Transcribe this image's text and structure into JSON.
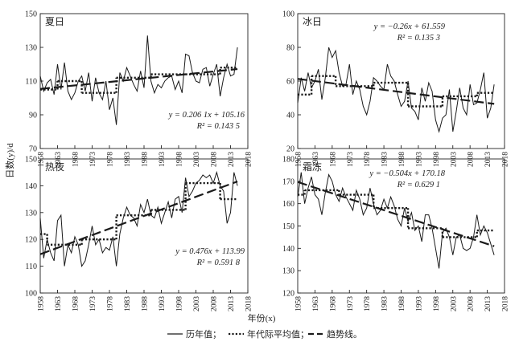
{
  "figure": {
    "ylabel": "日数(y)/d",
    "xlabel": "年份(x)",
    "legend": [
      {
        "style": "solid",
        "label": "历年值；"
      },
      {
        "style": "dotted",
        "label": "年代际平均值；"
      },
      {
        "style": "dashed",
        "label": "趋势线。"
      }
    ],
    "xticks": [
      "1958",
      "1963",
      "1968",
      "1973",
      "1978",
      "1983",
      "1988",
      "1993",
      "1998",
      "2003",
      "2008",
      "2013",
      "2018"
    ]
  },
  "chart_data": [
    {
      "type": "line",
      "title": "夏日",
      "eq_line1": "y = 0.206 1x + 105.16",
      "eq_line2": "R² = 0.143 5",
      "xlim": [
        1958,
        2018
      ],
      "ylim": [
        70,
        150
      ],
      "yticks": [
        "70",
        "90",
        "110",
        "130",
        "150"
      ],
      "x": [
        1958,
        1959,
        1960,
        1961,
        1962,
        1963,
        1964,
        1965,
        1966,
        1967,
        1968,
        1969,
        1970,
        1971,
        1972,
        1973,
        1974,
        1975,
        1976,
        1977,
        1978,
        1979,
        1980,
        1981,
        1982,
        1983,
        1984,
        1985,
        1986,
        1987,
        1988,
        1989,
        1990,
        1991,
        1992,
        1993,
        1994,
        1995,
        1996,
        1997,
        1998,
        1999,
        2000,
        2001,
        2002,
        2003,
        2004,
        2005,
        2006,
        2007,
        2008,
        2009,
        2010,
        2011,
        2012,
        2013,
        2014,
        2015
      ],
      "values": [
        113,
        104,
        109,
        111,
        102,
        120,
        105,
        121,
        104,
        99,
        103,
        110,
        113,
        104,
        115,
        98,
        112,
        103,
        99,
        110,
        93,
        100,
        84,
        115,
        110,
        118,
        113,
        108,
        104,
        116,
        106,
        137,
        110,
        103,
        108,
        106,
        110,
        112,
        113,
        105,
        110,
        103,
        126,
        125,
        115,
        110,
        109,
        117,
        118,
        107,
        114,
        120,
        101,
        112,
        120,
        113,
        114,
        130
      ],
      "decadal": [
        {
          "start": 1958,
          "end": 1963,
          "value": 105
        },
        {
          "start": 1963,
          "end": 1970,
          "value": 110
        },
        {
          "start": 1970,
          "end": 1980,
          "value": 103
        },
        {
          "start": 1980,
          "end": 1990,
          "value": 112
        },
        {
          "start": 1990,
          "end": 2000,
          "value": 114
        },
        {
          "start": 2000,
          "end": 2010,
          "value": 114
        },
        {
          "start": 2010,
          "end": 2015,
          "value": 118
        }
      ],
      "trend": {
        "slope": 0.2061,
        "intercept": 105.16,
        "x0": 1958,
        "x_range": [
          1958,
          2015
        ]
      }
    },
    {
      "type": "line",
      "title": "冰日",
      "eq_line1": "y = −0.26x + 61.559",
      "eq_line2": "R² = 0.135 3",
      "xlim": [
        1958,
        2018
      ],
      "ylim": [
        20,
        100
      ],
      "yticks": [
        "20",
        "40",
        "60",
        "80",
        "100"
      ],
      "x": [
        1958,
        1959,
        1960,
        1961,
        1962,
        1963,
        1964,
        1965,
        1966,
        1967,
        1968,
        1969,
        1970,
        1971,
        1972,
        1973,
        1974,
        1975,
        1976,
        1977,
        1978,
        1979,
        1980,
        1981,
        1982,
        1983,
        1984,
        1985,
        1986,
        1987,
        1988,
        1989,
        1990,
        1991,
        1992,
        1993,
        1994,
        1995,
        1996,
        1997,
        1998,
        1999,
        2000,
        2001,
        2002,
        2003,
        2004,
        2005,
        2006,
        2007,
        2008,
        2009,
        2010,
        2011,
        2012,
        2013,
        2014,
        2015
      ],
      "values": [
        47,
        62,
        54,
        65,
        56,
        60,
        67,
        49,
        62,
        80,
        74,
        78,
        65,
        57,
        58,
        70,
        52,
        60,
        55,
        45,
        40,
        48,
        62,
        60,
        57,
        55,
        70,
        63,
        60,
        52,
        45,
        48,
        60,
        44,
        42,
        37,
        56,
        48,
        59,
        54,
        37,
        30,
        38,
        40,
        55,
        30,
        42,
        56,
        44,
        40,
        58,
        46,
        47,
        55,
        65,
        38,
        44,
        58
      ],
      "decadal": [
        {
          "start": 1958,
          "end": 1962,
          "value": 52
        },
        {
          "start": 1962,
          "end": 1969,
          "value": 63
        },
        {
          "start": 1969,
          "end": 1980,
          "value": 57
        },
        {
          "start": 1980,
          "end": 1990,
          "value": 59
        },
        {
          "start": 1990,
          "end": 2000,
          "value": 45
        },
        {
          "start": 2000,
          "end": 2010,
          "value": 51
        },
        {
          "start": 2010,
          "end": 2015,
          "value": 53
        }
      ],
      "trend": {
        "slope": -0.26,
        "intercept": 61.559,
        "x0": 1958,
        "x_range": [
          1958,
          2015
        ]
      }
    },
    {
      "type": "line",
      "title": "热夜",
      "eq_line1": "y = 0.476x + 113.99",
      "eq_line2": "R² = 0.591 8",
      "xlim": [
        1958,
        2018
      ],
      "ylim": [
        100,
        150
      ],
      "yticks": [
        "100",
        "110",
        "120",
        "130",
        "140",
        "150"
      ],
      "x": [
        1958,
        1959,
        1960,
        1961,
        1962,
        1963,
        1964,
        1965,
        1966,
        1967,
        1968,
        1969,
        1970,
        1971,
        1972,
        1973,
        1974,
        1975,
        1976,
        1977,
        1978,
        1979,
        1980,
        1981,
        1982,
        1983,
        1984,
        1985,
        1986,
        1987,
        1988,
        1989,
        1990,
        1991,
        1992,
        1993,
        1994,
        1995,
        1996,
        1997,
        1998,
        1999,
        2000,
        2001,
        2002,
        2003,
        2004,
        2005,
        2006,
        2007,
        2008,
        2009,
        2010,
        2011,
        2012,
        2013,
        2014,
        2015
      ],
      "values": [
        128,
        113,
        120,
        115,
        112,
        127,
        129,
        110,
        118,
        115,
        121,
        118,
        110,
        112,
        118,
        125,
        118,
        120,
        115,
        117,
        116,
        121,
        110,
        122,
        128,
        132,
        129,
        128,
        125,
        133,
        130,
        135,
        129,
        128,
        132,
        126,
        130,
        134,
        128,
        135,
        136,
        130,
        143,
        136,
        138,
        141,
        142,
        144,
        143,
        144,
        141,
        145,
        140,
        138,
        126,
        130,
        145,
        140
      ],
      "decadal": [
        {
          "start": 1958,
          "end": 1960,
          "value": 122
        },
        {
          "start": 1960,
          "end": 1970,
          "value": 118
        },
        {
          "start": 1970,
          "end": 1980,
          "value": 120
        },
        {
          "start": 1980,
          "end": 1990,
          "value": 129
        },
        {
          "start": 1990,
          "end": 2000,
          "value": 131
        },
        {
          "start": 2000,
          "end": 2010,
          "value": 141
        },
        {
          "start": 2010,
          "end": 2015,
          "value": 135
        }
      ],
      "trend": {
        "slope": 0.476,
        "intercept": 113.99,
        "x0": 1958,
        "x_range": [
          1958,
          2015
        ]
      }
    },
    {
      "type": "line",
      "title": "霜冻",
      "eq_line1": "y = −0.504x + 170.18",
      "eq_line2": "R² = 0.629 1",
      "xlim": [
        1958,
        2018
      ],
      "ylim": [
        120,
        180
      ],
      "yticks": [
        "120",
        "130",
        "140",
        "150",
        "160",
        "170",
        "180"
      ],
      "x": [
        1958,
        1959,
        1960,
        1961,
        1962,
        1963,
        1964,
        1965,
        1966,
        1967,
        1968,
        1969,
        1970,
        1971,
        1972,
        1973,
        1974,
        1975,
        1976,
        1977,
        1978,
        1979,
        1980,
        1981,
        1982,
        1983,
        1984,
        1985,
        1986,
        1987,
        1988,
        1989,
        1990,
        1991,
        1992,
        1993,
        1994,
        1995,
        1996,
        1997,
        1998,
        1999,
        2000,
        2001,
        2002,
        2003,
        2004,
        2005,
        2006,
        2007,
        2008,
        2009,
        2010,
        2011,
        2012,
        2013,
        2014,
        2015
      ],
      "values": [
        163,
        174,
        160,
        167,
        172,
        164,
        162,
        155,
        165,
        173,
        170,
        164,
        161,
        167,
        163,
        160,
        157,
        166,
        162,
        155,
        158,
        167,
        160,
        155,
        157,
        162,
        158,
        163,
        159,
        153,
        150,
        158,
        152,
        156,
        148,
        150,
        143,
        155,
        155,
        149,
        140,
        131,
        147,
        149,
        145,
        137,
        145,
        146,
        140,
        139,
        140,
        145,
        155,
        146,
        150,
        147,
        142,
        137
      ],
      "decadal": [
        {
          "start": 1958,
          "end": 1960,
          "value": 164
        },
        {
          "start": 1960,
          "end": 1970,
          "value": 166
        },
        {
          "start": 1970,
          "end": 1980,
          "value": 164
        },
        {
          "start": 1980,
          "end": 1990,
          "value": 158
        },
        {
          "start": 1990,
          "end": 2000,
          "value": 149
        },
        {
          "start": 2000,
          "end": 2010,
          "value": 145
        },
        {
          "start": 2010,
          "end": 2015,
          "value": 148
        }
      ],
      "trend": {
        "slope": -0.504,
        "intercept": 170.18,
        "x0": 1958,
        "x_range": [
          1958,
          2015
        ]
      }
    }
  ]
}
